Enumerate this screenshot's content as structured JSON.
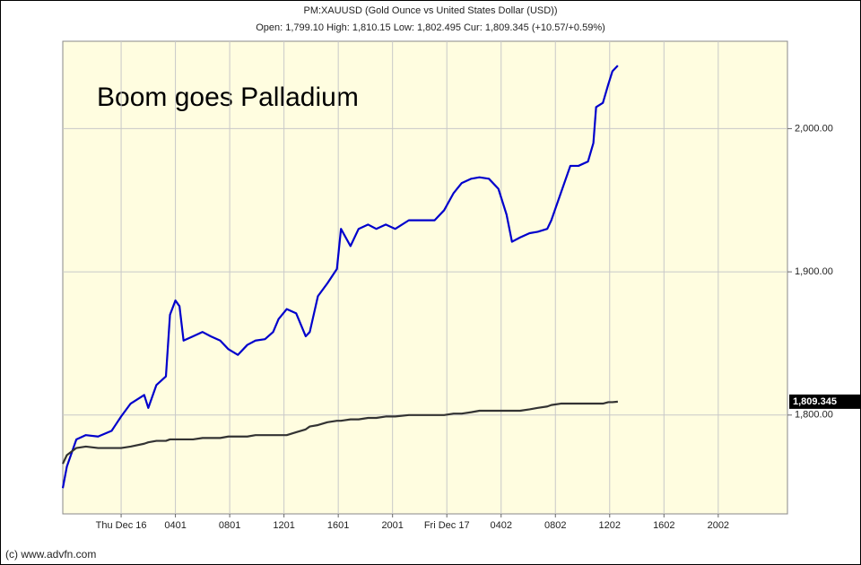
{
  "chart_data": {
    "type": "line",
    "title": "PM:XAUUSD (Gold Ounce vs United States Dollar (USD))",
    "subtitle": "Open: 1,799.10 High: 1,810.15 Low: 1,802.495 Cur: 1,809.345 (+10.57/+0.59%)",
    "annotation": "Boom goes Palladium",
    "footer": "(c) www.advfn.com",
    "x": [
      -4.3,
      -4.0,
      -3.3,
      -2.6,
      -1.7,
      -0.7,
      0,
      0.7,
      1.7,
      2.0,
      2.6,
      3.3,
      3.6,
      4.0,
      4.3,
      4.6,
      5.3,
      6.0,
      6.6,
      7.3,
      7.9,
      8.6,
      9.3,
      9.9,
      10.6,
      11.2,
      11.6,
      12.2,
      12.9,
      13.6,
      13.9,
      14.5,
      15.2,
      15.9,
      16.2,
      16.9,
      17.5,
      18.2,
      18.8,
      19.5,
      20.2,
      21.2,
      22.1,
      23.1,
      23.8,
      24.5,
      25.1,
      25.8,
      26.4,
      27.1,
      27.8,
      28.4,
      28.8,
      29.4,
      30.1,
      30.7,
      31.4,
      31.7,
      32.4,
      33.1,
      33.7,
      34.4,
      34.8,
      35.0,
      35.5,
      35.9,
      36.2,
      36.6
    ],
    "series": [
      {
        "color": "#0000cc",
        "values": [
          1749,
          1764,
          1783,
          1786,
          1785,
          1789,
          1799,
          1808,
          1814,
          1805,
          1821,
          1827,
          1870,
          1880,
          1876,
          1852,
          1855,
          1858,
          1855,
          1852,
          1846,
          1842,
          1849,
          1852,
          1853,
          1858,
          1867,
          1874,
          1871,
          1855,
          1858,
          1883,
          1892,
          1902,
          1930,
          1918,
          1930,
          1933,
          1930,
          1933,
          1930,
          1936,
          1936,
          1936,
          1943,
          1955,
          1962,
          1965,
          1966,
          1965,
          1958,
          1940,
          1921,
          1924,
          1927,
          1928,
          1930,
          1936,
          1955,
          1974,
          1974,
          1977,
          1990,
          2015,
          2018,
          2031,
          2040,
          2044
        ]
      },
      {
        "color": "#333333",
        "values": [
          1766,
          1772,
          1777,
          1778,
          1777,
          1777,
          1777,
          1778,
          1780,
          1781,
          1782,
          1782,
          1783,
          1783,
          1783,
          1783,
          1783,
          1784,
          1784,
          1784,
          1785,
          1785,
          1785,
          1786,
          1786,
          1786,
          1786,
          1786,
          1788,
          1790,
          1792,
          1793,
          1795,
          1796,
          1796,
          1797,
          1797,
          1798,
          1798,
          1799,
          1799,
          1800,
          1800,
          1800,
          1800,
          1801,
          1801,
          1802,
          1803,
          1803,
          1803,
          1803,
          1803,
          1803,
          1804,
          1805,
          1806,
          1807,
          1808,
          1808,
          1808,
          1808,
          1808,
          1808,
          1808,
          1809,
          1809,
          1809.345
        ],
        "value_labels": [
          null,
          null,
          null,
          null,
          null,
          null,
          null,
          null,
          null,
          null,
          null,
          null,
          null,
          null,
          null,
          null,
          null,
          null,
          null,
          null,
          null,
          null,
          null,
          null,
          null,
          null,
          null,
          null,
          null,
          null,
          null,
          null,
          null,
          null,
          null,
          null,
          null,
          null,
          null,
          null,
          null,
          null,
          null,
          null,
          null,
          null,
          null,
          null,
          null,
          null,
          null,
          null,
          null,
          null,
          null,
          null,
          null,
          null,
          null,
          null,
          null,
          null,
          null,
          null,
          null,
          null,
          null,
          "1,809.345"
        ]
      }
    ],
    "xlim": [
      -4.3,
      49.1
    ],
    "xticks": [
      {
        "value": 0,
        "label": "Thu Dec 16"
      },
      {
        "value": 4,
        "label": "0401"
      },
      {
        "value": 8,
        "label": "0801"
      },
      {
        "value": 12,
        "label": "1201"
      },
      {
        "value": 16,
        "label": "1601"
      },
      {
        "value": 20,
        "label": "2001"
      },
      {
        "value": 24,
        "label": "Fri Dec 17"
      },
      {
        "value": 28,
        "label": "0402"
      },
      {
        "value": 32,
        "label": "0802"
      },
      {
        "value": 36,
        "label": "1202"
      },
      {
        "value": 40,
        "label": "1602"
      },
      {
        "value": 44,
        "label": "2002"
      }
    ],
    "ylim": [
      1731,
      2061
    ],
    "yticks": [
      {
        "value": 1800,
        "label": "1,800.00"
      },
      {
        "value": 1900,
        "label": "1,900.00"
      },
      {
        "value": 2000,
        "label": "2,000.00"
      }
    ],
    "grid": true,
    "plot_background": "#fffde0"
  }
}
